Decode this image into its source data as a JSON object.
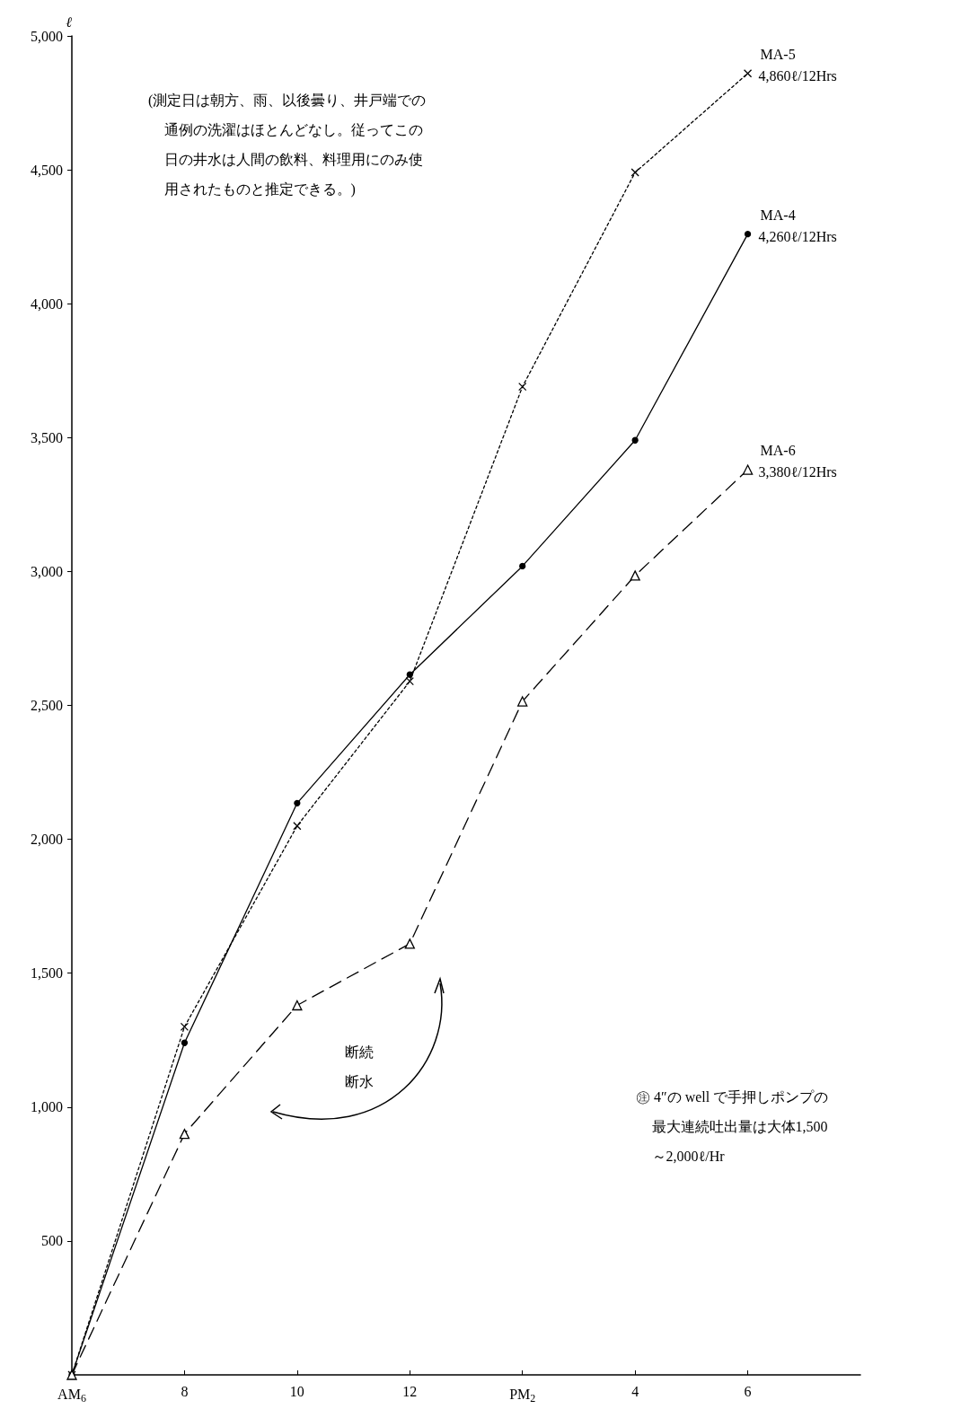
{
  "chart_data": {
    "type": "line",
    "ylabel": "ℓ",
    "categories": [
      "AM$_{6}$",
      "8",
      "10",
      "12",
      "PM$_{2}$",
      "4",
      "6",
      null
    ],
    "ylim": [
      0,
      5000
    ],
    "yticks": [
      500,
      {
        "value": 1000,
        "label": "1,000"
      },
      {
        "value": 1500,
        "label": "1,500"
      },
      {
        "value": 2000,
        "label": "2,000"
      },
      {
        "value": 2500,
        "label": "2,500"
      },
      {
        "value": 3000,
        "label": "3,000"
      },
      {
        "value": 3500,
        "label": "3,500"
      },
      {
        "value": 4000,
        "label": "4,000"
      },
      {
        "value": 4500,
        "label": "4,500"
      },
      {
        "value": 5000,
        "label": "5,000"
      }
    ],
    "grid": false,
    "legend": false,
    "series": [
      {
        "name": "MA-4",
        "color": "#000000",
        "marker": "circle",
        "line_style": "solid",
        "values": [
          0,
          1240,
          2135,
          2615,
          3020,
          3490,
          4260,
          null
        ]
      },
      {
        "name": "MA-5",
        "color": "#000000",
        "marker": "cross",
        "line_style": "dotted",
        "values": [
          0,
          1300,
          2050,
          2590,
          3690,
          4490,
          4860,
          null
        ]
      },
      {
        "name": "MA-6",
        "color": "#000000",
        "marker": "triangle",
        "line_style": "dashed",
        "values": [
          0,
          900,
          1380,
          1610,
          2515,
          2985,
          3380,
          null
        ]
      }
    ],
    "annotations": [
      "(測定日は朝方、雨、以後曇り、井戸端での通例の洗濯はほとんどなし。従ってこの日の井水は人間の飲料、料理用にのみ使用されたものと推定できる。)",
      "断続断水",
      "㊟ 4″の well で手押しポンプの最大連続吐出量は大体1,500～2,000ℓ/Hr",
      {
        "text": "4,260ℓ/12Hrs",
        "x": "6",
        "y": 4260
      },
      {
        "text": "4,860ℓ/12Hrs",
        "x": "6",
        "y": 4860
      },
      {
        "text": "3,380ℓ/12Hrs",
        "x": "6",
        "y": 3380
      }
    ]
  }
}
